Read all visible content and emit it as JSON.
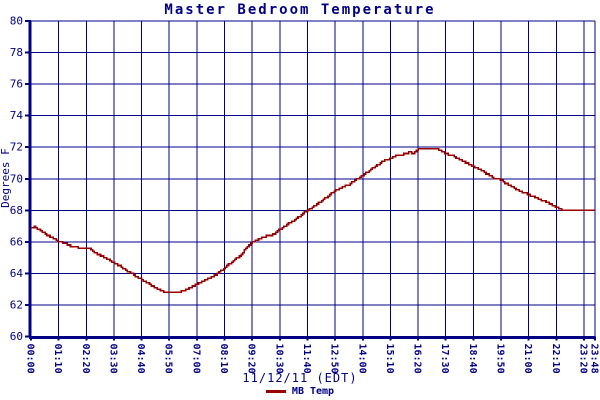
{
  "colors": {
    "axis": "#000084",
    "grid": "#000084",
    "text": "#000084",
    "line": "#9b0000",
    "background": "#ffffff"
  },
  "chart_data": {
    "type": "line",
    "title": "Master Bedroom Temperature",
    "xlabel": "11/12/11 (EDT)",
    "ylabel": "Degrees F",
    "grid": true,
    "legend_position": "bottom-center",
    "legend": [
      {
        "label": "MB Temp",
        "color": "#9b0000"
      }
    ],
    "ylim": [
      60,
      80
    ],
    "y_ticks": [
      60,
      62,
      64,
      66,
      68,
      70,
      72,
      74,
      76,
      78,
      80
    ],
    "x_range_minutes": [
      0,
      1428
    ],
    "x_tick_labels": [
      "00:00",
      "01:10",
      "02:20",
      "03:30",
      "04:40",
      "05:50",
      "07:00",
      "08:10",
      "09:20",
      "10:30",
      "11:40",
      "12:50",
      "14:00",
      "15:10",
      "16:20",
      "17:30",
      "18:40",
      "19:50",
      "21:00",
      "22:10",
      "23:20",
      "23:48"
    ],
    "x_tick_minutes": [
      0,
      70,
      140,
      210,
      280,
      350,
      420,
      490,
      560,
      630,
      700,
      770,
      840,
      910,
      980,
      1050,
      1120,
      1190,
      1260,
      1330,
      1400,
      1428
    ],
    "series": [
      {
        "name": "MB Temp",
        "color": "#9b0000",
        "points_min_degF": [
          [
            0,
            66.9
          ],
          [
            8,
            66.95
          ],
          [
            35,
            66.5
          ],
          [
            71,
            66.0
          ],
          [
            105,
            65.7
          ],
          [
            140,
            65.55
          ],
          [
            146,
            65.65
          ],
          [
            152,
            65.45
          ],
          [
            193,
            64.9
          ],
          [
            225,
            64.45
          ],
          [
            249,
            64.05
          ],
          [
            274,
            63.7
          ],
          [
            300,
            63.3
          ],
          [
            320,
            63.0
          ],
          [
            337,
            62.8
          ],
          [
            375,
            62.8
          ],
          [
            400,
            63.05
          ],
          [
            426,
            63.4
          ],
          [
            460,
            63.8
          ],
          [
            472,
            64.0
          ],
          [
            490,
            64.35
          ],
          [
            527,
            65.1
          ],
          [
            560,
            66.0
          ],
          [
            585,
            66.3
          ],
          [
            612,
            66.45
          ],
          [
            629,
            66.8
          ],
          [
            665,
            67.35
          ],
          [
            700,
            68.0
          ],
          [
            736,
            68.6
          ],
          [
            773,
            69.3
          ],
          [
            805,
            69.65
          ],
          [
            827,
            70.0
          ],
          [
            855,
            70.5
          ],
          [
            883,
            71.0
          ],
          [
            921,
            71.45
          ],
          [
            950,
            71.6
          ],
          [
            961,
            71.7
          ],
          [
            965,
            71.5
          ],
          [
            971,
            71.7
          ],
          [
            979,
            71.85
          ],
          [
            1005,
            71.9
          ],
          [
            1030,
            71.85
          ],
          [
            1048,
            71.6
          ],
          [
            1068,
            71.45
          ],
          [
            1102,
            71.0
          ],
          [
            1136,
            70.6
          ],
          [
            1161,
            70.2
          ],
          [
            1174,
            70.0
          ],
          [
            1183,
            70.05
          ],
          [
            1192,
            69.85
          ],
          [
            1238,
            69.2
          ],
          [
            1263,
            68.95
          ],
          [
            1314,
            68.4
          ],
          [
            1340,
            68.05
          ],
          [
            1347,
            68.0
          ],
          [
            1428,
            68.0
          ]
        ]
      }
    ]
  }
}
